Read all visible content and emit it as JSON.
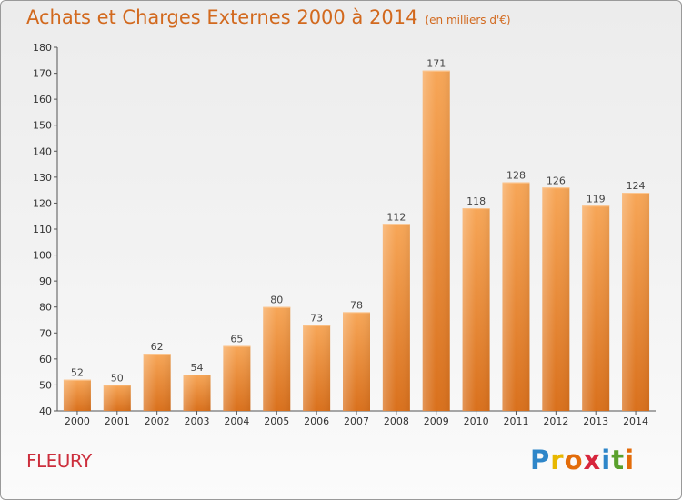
{
  "header": {
    "title": "Achats et Charges Externes 2000 à 2014",
    "subtitle": "(en milliers d'€)"
  },
  "place": "FLEURY",
  "logo": {
    "letters": [
      "P",
      "r",
      "o",
      "x",
      "i",
      "t",
      "i"
    ],
    "colors": [
      "#2e86c9",
      "#e8b800",
      "#e36c0a",
      "#d7263d",
      "#2e86c9",
      "#5aa02c",
      "#e36c0a"
    ]
  },
  "chart_data": {
    "type": "bar",
    "title": "Achats et Charges Externes 2000 à 2014",
    "subtitle": "(en milliers d'€)",
    "categories": [
      "2000",
      "2001",
      "2002",
      "2003",
      "2004",
      "2005",
      "2006",
      "2007",
      "2008",
      "2009",
      "2010",
      "2011",
      "2012",
      "2013",
      "2014"
    ],
    "values": [
      52,
      50,
      62,
      54,
      65,
      80,
      73,
      78,
      112,
      171,
      118,
      128,
      126,
      119,
      124
    ],
    "ylim": [
      40,
      180
    ],
    "yticks": [
      40,
      50,
      60,
      70,
      80,
      90,
      100,
      110,
      120,
      130,
      140,
      150,
      160,
      170,
      180
    ],
    "grid": false,
    "bar_color": "#f0923a",
    "data_labels": true
  }
}
